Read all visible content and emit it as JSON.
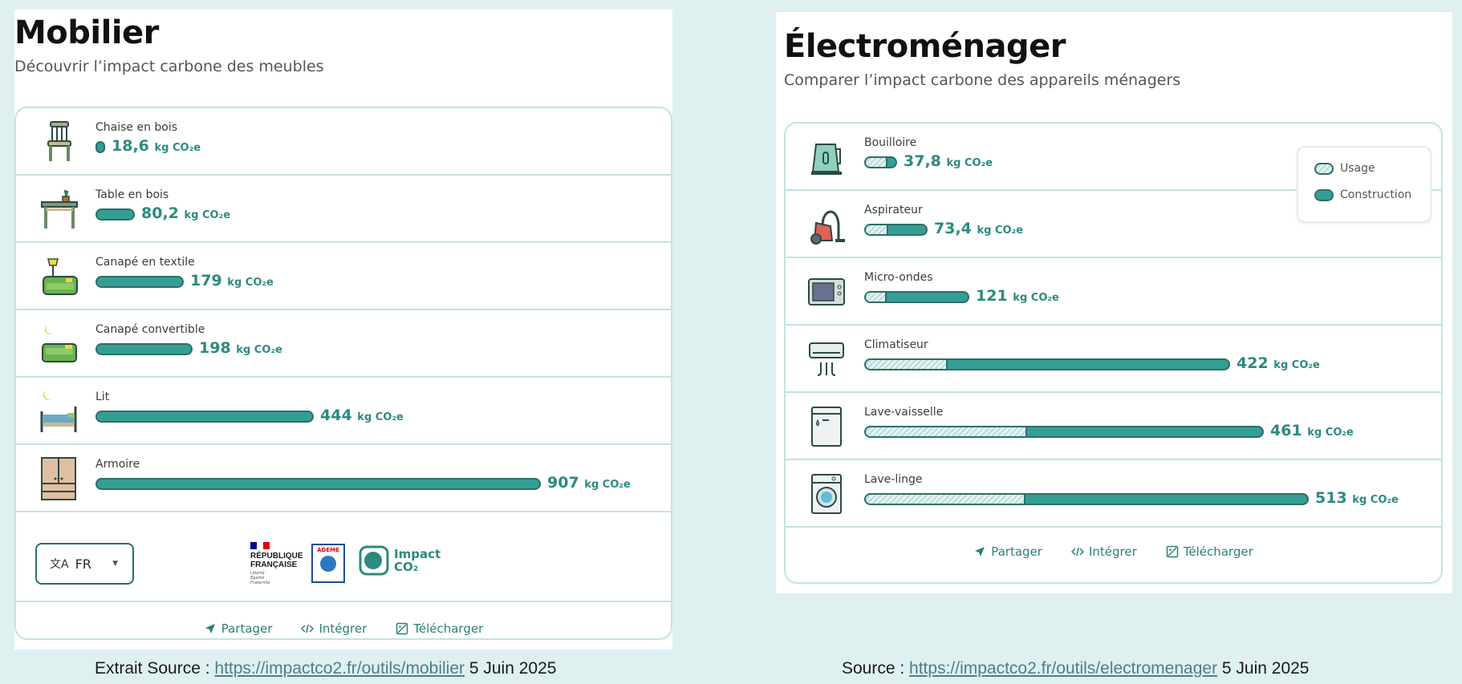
{
  "colors": {
    "background": "#dff0f1",
    "bar_construction": "#359e94",
    "bar_border": "#2b6f68",
    "value_text": "#2c8a80",
    "card_border": "#c2e3e3"
  },
  "left": {
    "title": "Mobilier",
    "subtitle": "Découvrir l’impact carbone des meubles",
    "items": [
      {
        "label": "Chaise en bois",
        "value": "18,6",
        "unit": "kg CO₂e",
        "icon": "chair-icon"
      },
      {
        "label": "Table en bois",
        "value": "80,2",
        "unit": "kg CO₂e",
        "icon": "table-icon"
      },
      {
        "label": "Canapé en textile",
        "value": "179",
        "unit": "kg CO₂e",
        "icon": "sofa-icon"
      },
      {
        "label": "Canapé convertible",
        "value": "198",
        "unit": "kg CO₂e",
        "icon": "sofa-bed-icon"
      },
      {
        "label": "Lit",
        "value": "444",
        "unit": "kg CO₂e",
        "icon": "bed-icon"
      },
      {
        "label": "Armoire",
        "value": "907",
        "unit": "kg CO₂e",
        "icon": "wardrobe-icon"
      }
    ],
    "language": {
      "value": "FR"
    },
    "logos": {
      "rf_line1": "RÉPUBLIQUE",
      "rf_line2": "FRANÇAISE",
      "rf_motto": "Liberté Égalité Fraternité",
      "ademe": "ADEME",
      "impact_line1": "Impact",
      "impact_line2": "CO₂"
    },
    "actions": {
      "share": "Partager",
      "embed": "Intégrer",
      "download": "Télécharger"
    },
    "caption": {
      "prefix": "Extrait Source : ",
      "link": "https://impactco2.fr/outils/mobilier",
      "suffix": " 5 Juin 2025"
    }
  },
  "right": {
    "title": "Électroménager",
    "subtitle": "Comparer l’impact carbone des appareils ménagers",
    "legend": {
      "usage": "Usage",
      "construction": "Construction"
    },
    "items": [
      {
        "label": "Bouilloire",
        "value": "37,8",
        "unit": "kg CO₂e",
        "icon": "kettle-icon"
      },
      {
        "label": "Aspirateur",
        "value": "73,4",
        "unit": "kg CO₂e",
        "icon": "vacuum-icon"
      },
      {
        "label": "Micro-ondes",
        "value": "121",
        "unit": "kg CO₂e",
        "icon": "microwave-icon"
      },
      {
        "label": "Climatiseur",
        "value": "422",
        "unit": "kg CO₂e",
        "icon": "air-conditioner-icon"
      },
      {
        "label": "Lave-vaisselle",
        "value": "461",
        "unit": "kg CO₂e",
        "icon": "dishwasher-icon"
      },
      {
        "label": "Lave-linge",
        "value": "513",
        "unit": "kg CO₂e",
        "icon": "washing-machine-icon"
      }
    ],
    "actions": {
      "share": "Partager",
      "embed": "Intégrer",
      "download": "Télécharger"
    },
    "caption": {
      "prefix": "Source : ",
      "link": "https://impactco2.fr/outils/electromenager",
      "suffix": " 5 Juin 2025"
    }
  },
  "chart_data": [
    {
      "type": "bar",
      "orientation": "horizontal",
      "title": "Mobilier",
      "subtitle": "Découvrir l’impact carbone des meubles",
      "categories": [
        "Chaise en bois",
        "Table en bois",
        "Canapé en textile",
        "Canapé convertible",
        "Lit",
        "Armoire"
      ],
      "values": [
        18.6,
        80.2,
        179,
        198,
        444,
        907
      ],
      "unit": "kg CO₂e",
      "xlabel": "",
      "ylabel": "",
      "grid": false,
      "legend": null
    },
    {
      "type": "bar",
      "orientation": "horizontal",
      "stacked": true,
      "title": "Électroménager",
      "subtitle": "Comparer l’impact carbone des appareils ménagers",
      "categories": [
        "Bouilloire",
        "Aspirateur",
        "Micro-ondes",
        "Climatiseur",
        "Lave-vaisselle",
        "Lave-linge"
      ],
      "totals": [
        37.8,
        73.4,
        121,
        422,
        461,
        513
      ],
      "series": [
        {
          "name": "Usage",
          "values": [
            25,
            26,
            24,
            94,
            186,
            184
          ]
        },
        {
          "name": "Construction",
          "values": [
            12.8,
            47.4,
            97,
            328,
            275,
            329
          ]
        }
      ],
      "unit": "kg CO₂e",
      "legend_position": "top-right",
      "grid": false
    }
  ]
}
